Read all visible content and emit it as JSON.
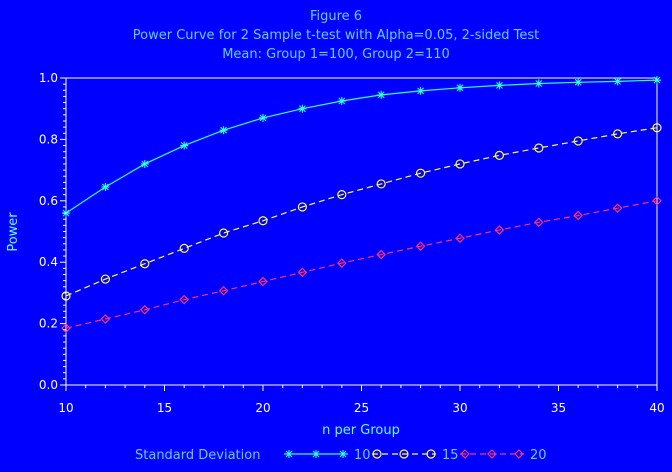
{
  "chart_data": {
    "type": "line",
    "title_lines": [
      "Figure 6",
      "Power Curve for 2 Sample t-test with Alpha=0.05, 2-sided Test",
      "Mean: Group 1=100, Group 2=110"
    ],
    "xlabel": "n per Group",
    "ylabel": "Power",
    "xlim": [
      10,
      40
    ],
    "ylim": [
      0.0,
      1.0
    ],
    "x_ticks": [
      10,
      15,
      20,
      25,
      30,
      35,
      40
    ],
    "y_ticks": [
      0.0,
      0.2,
      0.4,
      0.6,
      0.8,
      1.0
    ],
    "x_tick_labels": [
      "10",
      "15",
      "20",
      "25",
      "30",
      "35",
      "40"
    ],
    "y_tick_labels": [
      "0.0",
      "0.2",
      "0.4",
      "0.6",
      "0.8",
      "1.0"
    ],
    "grid": false,
    "legend": {
      "title": "Standard Deviation",
      "position": "bottom"
    },
    "x": [
      10,
      12,
      14,
      16,
      18,
      20,
      22,
      24,
      26,
      28,
      30,
      32,
      34,
      36,
      38,
      40
    ],
    "series": [
      {
        "name": "10",
        "color": "#33ffcc",
        "marker": "star",
        "dash": "solid",
        "values": [
          0.56,
          0.645,
          0.72,
          0.78,
          0.83,
          0.87,
          0.9,
          0.925,
          0.945,
          0.958,
          0.968,
          0.976,
          0.982,
          0.986,
          0.989,
          0.993
        ]
      },
      {
        "name": "15",
        "color": "#ffff33",
        "marker": "circle",
        "dash": "dashed",
        "values": [
          0.29,
          0.345,
          0.395,
          0.445,
          0.495,
          0.535,
          0.58,
          0.62,
          0.655,
          0.69,
          0.72,
          0.748,
          0.772,
          0.795,
          0.818,
          0.838
        ]
      },
      {
        "name": "20",
        "color": "#ff3366",
        "marker": "diamond",
        "dash": "dashed",
        "values": [
          0.185,
          0.215,
          0.245,
          0.278,
          0.307,
          0.337,
          0.367,
          0.397,
          0.425,
          0.452,
          0.478,
          0.505,
          0.53,
          0.552,
          0.576,
          0.6
        ]
      }
    ],
    "colors": {
      "background": "#0000ff",
      "axis": "#ffffff",
      "title": "#66ccff",
      "label": "#66ffff"
    }
  }
}
